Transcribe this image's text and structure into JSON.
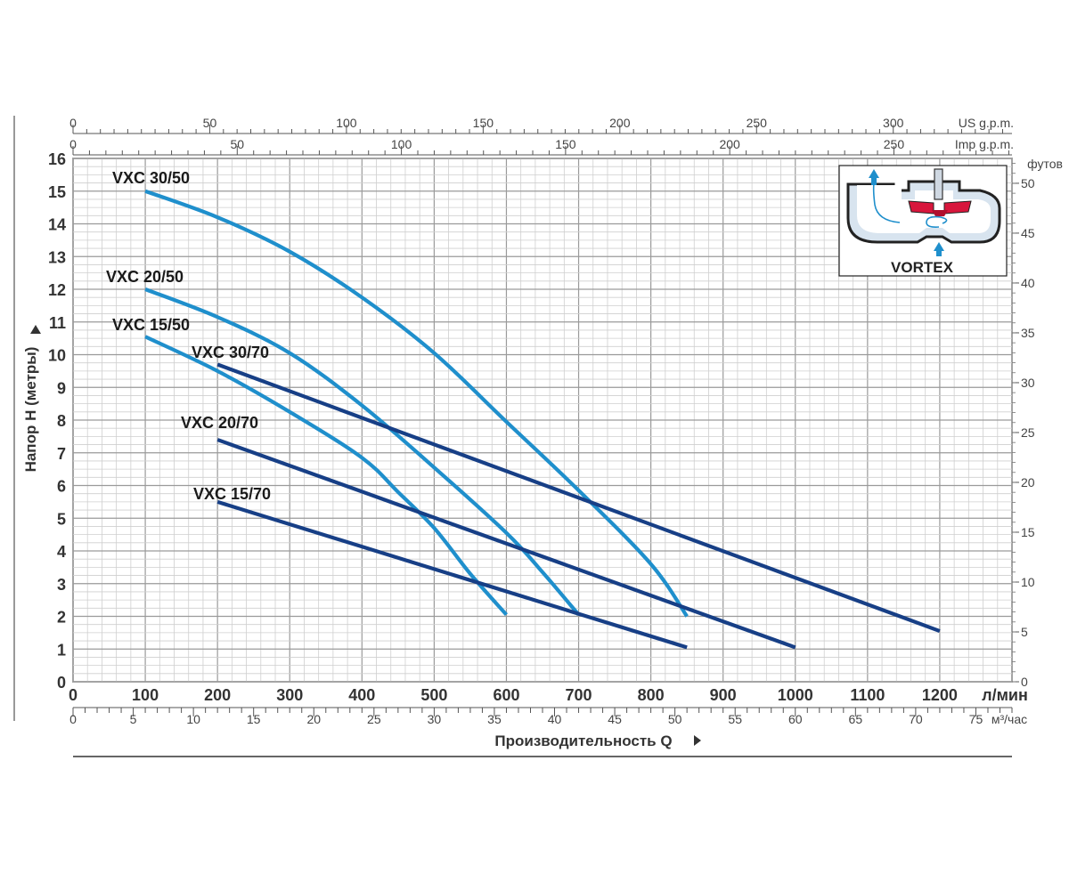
{
  "chart_data": {
    "type": "line",
    "x_unit": "л/мин",
    "xlim": [
      0,
      1300
    ],
    "ylim": [
      0,
      16
    ],
    "x_ticks": [
      0,
      100,
      200,
      300,
      400,
      500,
      600,
      700,
      800,
      900,
      1000,
      1100,
      1200
    ],
    "y_ticks": [
      0,
      1,
      2,
      3,
      4,
      5,
      6,
      7,
      8,
      9,
      10,
      11,
      12,
      13,
      14,
      15,
      16
    ],
    "ylabel": "Напор H (метры)",
    "xlabel": "Производительность  Q",
    "grid": true,
    "top_axes": [
      {
        "unit": "US g.p.m.",
        "ticks": [
          0,
          50,
          100,
          150,
          200,
          250,
          300
        ],
        "per_lpm": 0.264172
      },
      {
        "unit": "Imp g.p.m.",
        "ticks": [
          0,
          50,
          100,
          150,
          200,
          250
        ],
        "per_lpm": 0.219969
      }
    ],
    "right_axis": {
      "unit": "футов",
      "ticks": [
        0,
        5,
        10,
        15,
        20,
        25,
        30,
        35,
        40,
        45,
        50
      ],
      "per_m": 3.28084
    },
    "bottom_axis2": {
      "unit": "м³/час",
      "ticks": [
        0,
        5,
        10,
        15,
        20,
        25,
        30,
        35,
        40,
        45,
        50,
        55,
        60,
        65,
        70,
        75
      ],
      "per_lpm": 0.06
    },
    "series": [
      {
        "name": "VXC 30/50",
        "color": "#1f8fcc",
        "points": [
          [
            100,
            15
          ],
          [
            200,
            14.2
          ],
          [
            300,
            13.15
          ],
          [
            400,
            11.75
          ],
          [
            500,
            10.05
          ],
          [
            600,
            7.95
          ],
          [
            700,
            5.85
          ],
          [
            800,
            3.6
          ],
          [
            850,
            2.0
          ]
        ]
      },
      {
        "name": "VXC 20/50",
        "color": "#1f8fcc",
        "points": [
          [
            100,
            12
          ],
          [
            200,
            11.15
          ],
          [
            300,
            10.05
          ],
          [
            400,
            8.45
          ],
          [
            500,
            6.55
          ],
          [
            600,
            4.55
          ],
          [
            650,
            3.35
          ],
          [
            700,
            2.05
          ]
        ]
      },
      {
        "name": "VXC 15/50",
        "color": "#1f8fcc",
        "points": [
          [
            100,
            10.55
          ],
          [
            200,
            9.5
          ],
          [
            300,
            8.25
          ],
          [
            400,
            6.85
          ],
          [
            450,
            5.8
          ],
          [
            500,
            4.7
          ],
          [
            550,
            3.3
          ],
          [
            600,
            2.05
          ]
        ]
      },
      {
        "name": "VXC 30/70",
        "color": "#173f86",
        "points": [
          [
            200,
            9.7
          ],
          [
            1200,
            1.55
          ]
        ]
      },
      {
        "name": "VXC 20/70",
        "color": "#173f86",
        "points": [
          [
            200,
            7.4
          ],
          [
            1000,
            1.05
          ]
        ]
      },
      {
        "name": "VXC 15/70",
        "color": "#173f86",
        "points": [
          [
            200,
            5.5
          ],
          [
            850,
            1.05
          ]
        ]
      }
    ],
    "inset": {
      "label": "VORTEX"
    }
  }
}
